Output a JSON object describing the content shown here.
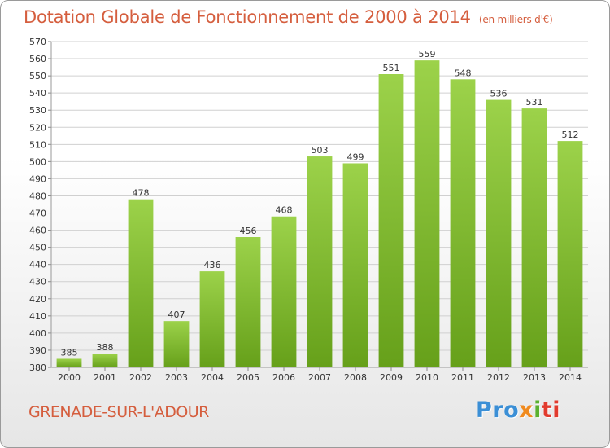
{
  "header": {
    "title": "Dotation Globale de Fonctionnement de 2000 à 2014",
    "unit": "(en milliers d'€)"
  },
  "footer": {
    "town": "GRENADE-SUR-L'ADOUR",
    "logo": [
      "Pro",
      "x",
      "i",
      "ti"
    ]
  },
  "colors": {
    "bar_light": "#9cd24a",
    "bar_dark": "#66a01a",
    "title": "#d55e3e",
    "grid": "#d0d0d0"
  },
  "chart_data": {
    "type": "bar",
    "title": "Dotation Globale de Fonctionnement de 2000 à 2014",
    "subtitle": "(en milliers d'€)",
    "xlabel": "",
    "ylabel": "",
    "categories": [
      "2000",
      "2001",
      "2002",
      "2003",
      "2004",
      "2005",
      "2006",
      "2007",
      "2008",
      "2009",
      "2010",
      "2011",
      "2012",
      "2013",
      "2014"
    ],
    "values": [
      385,
      388,
      478,
      407,
      436,
      456,
      468,
      503,
      499,
      551,
      559,
      548,
      536,
      531,
      512
    ],
    "ylim": [
      380,
      570
    ],
    "yticks": [
      380,
      390,
      400,
      410,
      420,
      430,
      440,
      450,
      460,
      470,
      480,
      490,
      500,
      510,
      520,
      530,
      540,
      550,
      560,
      570
    ],
    "grid": true,
    "data_labels": true
  }
}
